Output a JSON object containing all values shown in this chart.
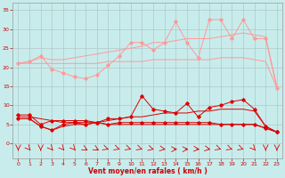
{
  "x": [
    0,
    1,
    2,
    3,
    4,
    5,
    6,
    7,
    8,
    9,
    10,
    11,
    12,
    13,
    14,
    15,
    16,
    17,
    18,
    19,
    20,
    21,
    22,
    23
  ],
  "pink_jagged": [
    21.0,
    21.5,
    23.0,
    19.5,
    18.5,
    17.5,
    17.0,
    18.0,
    20.5,
    23.0,
    26.5,
    26.5,
    24.5,
    26.5,
    32.0,
    26.5,
    22.5,
    32.5,
    32.5,
    27.5,
    32.5,
    27.5,
    27.5,
    14.5
  ],
  "pink_smooth_upper": [
    21.0,
    21.5,
    22.5,
    22.0,
    22.0,
    22.5,
    23.0,
    23.5,
    24.0,
    24.5,
    25.0,
    25.5,
    26.5,
    26.5,
    27.0,
    27.5,
    27.5,
    27.5,
    28.0,
    28.5,
    29.0,
    28.5,
    28.0,
    15.0
  ],
  "pink_smooth_lower": [
    21.0,
    21.0,
    21.0,
    21.0,
    21.0,
    21.0,
    21.0,
    21.0,
    21.5,
    21.5,
    21.5,
    21.5,
    22.0,
    22.0,
    22.0,
    22.0,
    22.0,
    22.0,
    22.5,
    22.5,
    22.5,
    22.0,
    21.5,
    14.5
  ],
  "red_jagged": [
    7.5,
    7.5,
    5.0,
    6.0,
    6.0,
    6.0,
    6.0,
    5.5,
    6.5,
    6.5,
    7.0,
    12.5,
    9.0,
    8.5,
    8.0,
    10.5,
    7.0,
    9.5,
    10.0,
    11.0,
    11.5,
    9.0,
    4.5,
    3.0
  ],
  "red_smooth_upper": [
    7.0,
    7.0,
    6.5,
    6.0,
    5.5,
    5.5,
    5.5,
    5.5,
    6.0,
    6.5,
    7.0,
    7.0,
    7.5,
    8.0,
    8.0,
    8.0,
    8.5,
    8.5,
    9.0,
    9.0,
    9.0,
    8.5,
    4.5,
    3.0
  ],
  "red_smooth_lower": [
    6.5,
    6.5,
    4.5,
    3.5,
    5.0,
    5.5,
    5.0,
    5.5,
    5.0,
    5.5,
    5.5,
    5.5,
    5.5,
    5.5,
    5.5,
    5.5,
    5.5,
    5.5,
    5.0,
    5.0,
    5.0,
    5.0,
    4.0,
    3.0
  ],
  "red_flat": [
    6.5,
    6.5,
    4.5,
    3.5,
    4.5,
    5.0,
    5.0,
    5.5,
    5.0,
    5.0,
    5.0,
    5.0,
    5.0,
    5.0,
    5.0,
    5.0,
    5.0,
    5.0,
    5.0,
    5.0,
    5.0,
    5.0,
    4.0,
    3.0
  ],
  "ylim": [
    -4,
    37
  ],
  "xlim": [
    -0.5,
    23.5
  ],
  "yticks": [
    0,
    5,
    10,
    15,
    20,
    25,
    30,
    35
  ],
  "xticks": [
    0,
    1,
    2,
    3,
    4,
    5,
    6,
    7,
    8,
    9,
    10,
    11,
    12,
    13,
    14,
    15,
    16,
    17,
    18,
    19,
    20,
    21,
    22,
    23
  ],
  "xlabel": "Vent moyen/en rafales ( km/h )",
  "background_color": "#c8ecec",
  "grid_color": "#b0c8c8",
  "light_pink_color": "#ff9999",
  "dark_red_color": "#dd0000",
  "xlabel_color": "#cc0000",
  "tick_color": "#cc0000"
}
